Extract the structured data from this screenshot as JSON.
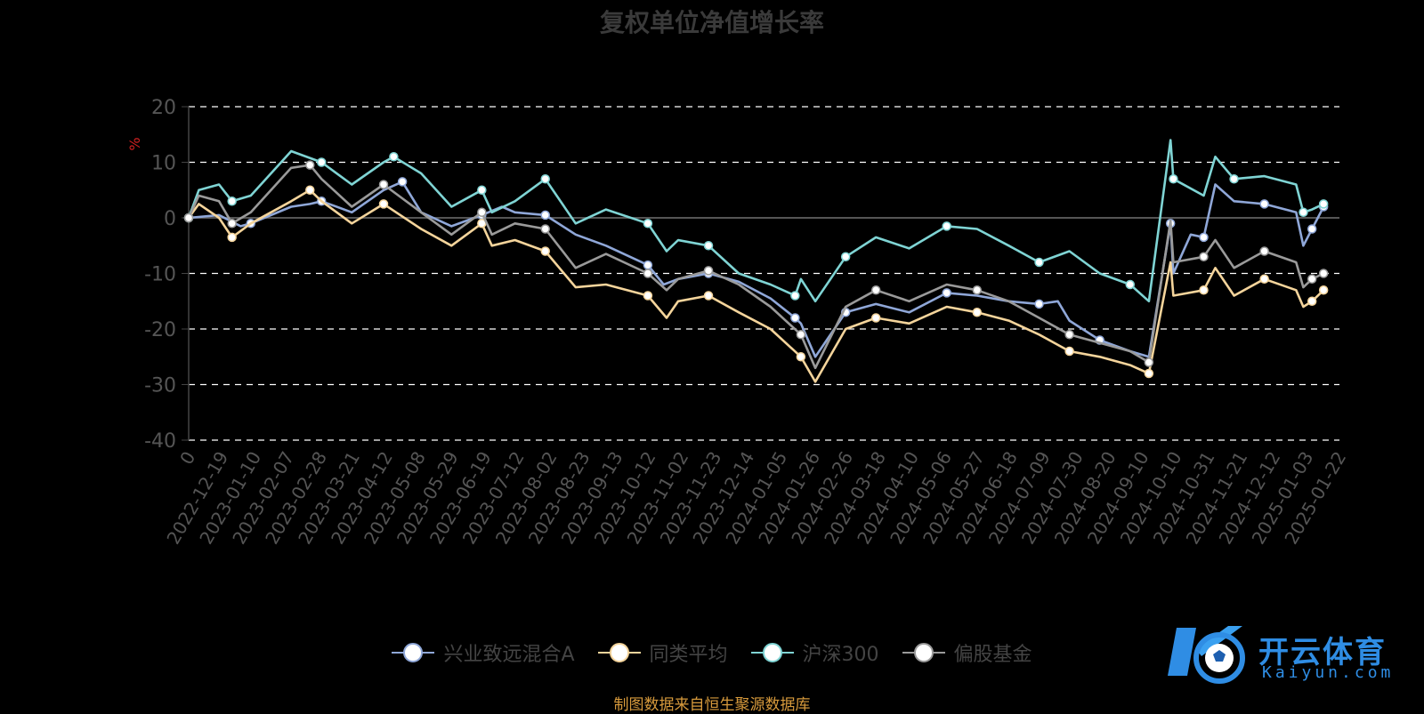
{
  "title": "复权单位净值增长率",
  "source_note": "制图数据来自恒生聚源数据库",
  "logo": {
    "brand": "开云体育",
    "domain": "Kaiyun.com"
  },
  "colors": {
    "axis": "#444444",
    "grid": "#ffffff",
    "zero": "#555555",
    "tick": "#555555",
    "unit": "#d02020"
  },
  "chart_data": {
    "type": "line",
    "ylabel": "%",
    "ylim": [
      -40,
      20
    ],
    "yticks": [
      20,
      10,
      0,
      -10,
      -20,
      -30,
      -40
    ],
    "xlim": [
      "2022-11-28",
      "2025-02-02"
    ],
    "x_tick_labels": [
      "0",
      "2022-12-19",
      "2023-01-10",
      "2023-02-07",
      "2023-02-28",
      "2023-03-21",
      "2023-04-12",
      "2023-05-08",
      "2023-05-29",
      "2023-06-19",
      "2023-07-12",
      "2023-08-02",
      "2023-08-23",
      "2023-09-13",
      "2023-10-12",
      "2023-11-02",
      "2023-11-23",
      "2023-12-14",
      "2024-01-05",
      "2024-01-26",
      "2024-02-26",
      "2024-03-18",
      "2024-04-10",
      "2024-05-06",
      "2024-05-27",
      "2024-06-18",
      "2024-07-09",
      "2024-07-30",
      "2024-08-20",
      "2024-09-10",
      "2024-10-10",
      "2024-10-31",
      "2024-11-21",
      "2024-12-12",
      "2025-01-03",
      "2025-01-22"
    ],
    "grid": "dashed horizontal",
    "legend_position": "bottom",
    "series": [
      {
        "name": "兴业致远混合A",
        "color": "#8fa7d8",
        "points": [
          [
            "2022-11-28",
            0
          ],
          [
            "2022-12-19",
            0.5
          ],
          [
            "2023-01-03",
            -1.5
          ],
          [
            "2023-01-10",
            -1
          ],
          [
            "2023-02-07",
            2
          ],
          [
            "2023-02-20",
            2.5
          ],
          [
            "2023-02-28",
            3
          ],
          [
            "2023-03-21",
            1
          ],
          [
            "2023-04-12",
            5
          ],
          [
            "2023-04-25",
            6.5
          ],
          [
            "2023-05-08",
            1
          ],
          [
            "2023-05-29",
            -1.5
          ],
          [
            "2023-06-19",
            0.5
          ],
          [
            "2023-07-03",
            2
          ],
          [
            "2023-07-12",
            1
          ],
          [
            "2023-08-02",
            0.5
          ],
          [
            "2023-08-23",
            -3
          ],
          [
            "2023-09-13",
            -5
          ],
          [
            "2023-10-12",
            -8.5
          ],
          [
            "2023-10-23",
            -12
          ],
          [
            "2023-11-02",
            -11
          ],
          [
            "2023-11-23",
            -10
          ],
          [
            "2023-12-14",
            -11.5
          ],
          [
            "2024-01-05",
            -14.5
          ],
          [
            "2024-01-22",
            -18
          ],
          [
            "2024-01-26",
            -19
          ],
          [
            "2024-02-05",
            -25
          ],
          [
            "2024-02-26",
            -17
          ],
          [
            "2024-03-18",
            -15.5
          ],
          [
            "2024-04-10",
            -17
          ],
          [
            "2024-05-06",
            -13.5
          ],
          [
            "2024-05-27",
            -14
          ],
          [
            "2024-06-18",
            -15
          ],
          [
            "2024-07-09",
            -15.5
          ],
          [
            "2024-07-22",
            -15
          ],
          [
            "2024-07-30",
            -18.5
          ],
          [
            "2024-08-20",
            -22
          ],
          [
            "2024-09-10",
            -24
          ],
          [
            "2024-09-23",
            -25
          ],
          [
            "2024-10-08",
            -1
          ],
          [
            "2024-10-10",
            -10
          ],
          [
            "2024-10-22",
            -3
          ],
          [
            "2024-10-31",
            -3.5
          ],
          [
            "2024-11-08",
            6
          ],
          [
            "2024-11-21",
            3
          ],
          [
            "2024-12-12",
            2.5
          ],
          [
            "2025-01-03",
            1
          ],
          [
            "2025-01-08",
            -5
          ],
          [
            "2025-01-14",
            -2
          ],
          [
            "2025-01-22",
            2
          ]
        ]
      },
      {
        "name": "同类平均",
        "color": "#f4d49b",
        "points": [
          [
            "2022-11-28",
            0
          ],
          [
            "2022-12-05",
            2.5
          ],
          [
            "2022-12-19",
            0
          ],
          [
            "2022-12-28",
            -3.5
          ],
          [
            "2023-01-10",
            -1
          ],
          [
            "2023-02-07",
            3
          ],
          [
            "2023-02-20",
            5
          ],
          [
            "2023-02-28",
            3
          ],
          [
            "2023-03-21",
            -1
          ],
          [
            "2023-04-12",
            2.5
          ],
          [
            "2023-05-08",
            -2
          ],
          [
            "2023-05-29",
            -5
          ],
          [
            "2023-06-19",
            -1
          ],
          [
            "2023-06-26",
            -5
          ],
          [
            "2023-07-12",
            -4
          ],
          [
            "2023-08-02",
            -6
          ],
          [
            "2023-08-23",
            -12.5
          ],
          [
            "2023-09-13",
            -12
          ],
          [
            "2023-10-12",
            -14
          ],
          [
            "2023-10-25",
            -18
          ],
          [
            "2023-11-02",
            -15
          ],
          [
            "2023-11-23",
            -14
          ],
          [
            "2023-12-14",
            -17
          ],
          [
            "2024-01-05",
            -20
          ],
          [
            "2024-01-26",
            -25
          ],
          [
            "2024-02-05",
            -29.5
          ],
          [
            "2024-02-26",
            -20
          ],
          [
            "2024-03-18",
            -18
          ],
          [
            "2024-04-10",
            -19
          ],
          [
            "2024-05-06",
            -16
          ],
          [
            "2024-05-27",
            -17
          ],
          [
            "2024-06-18",
            -18.5
          ],
          [
            "2024-07-09",
            -21
          ],
          [
            "2024-07-30",
            -24
          ],
          [
            "2024-08-20",
            -25
          ],
          [
            "2024-09-10",
            -26.5
          ],
          [
            "2024-09-23",
            -28
          ],
          [
            "2024-10-08",
            -8
          ],
          [
            "2024-10-10",
            -14
          ],
          [
            "2024-10-31",
            -13
          ],
          [
            "2024-11-08",
            -9
          ],
          [
            "2024-11-21",
            -14
          ],
          [
            "2024-12-12",
            -11
          ],
          [
            "2025-01-03",
            -13
          ],
          [
            "2025-01-08",
            -16
          ],
          [
            "2025-01-14",
            -15
          ],
          [
            "2025-01-22",
            -13
          ]
        ]
      },
      {
        "name": "沪深300",
        "color": "#7fd4d4",
        "points": [
          [
            "2022-11-28",
            0
          ],
          [
            "2022-12-05",
            5
          ],
          [
            "2022-12-19",
            6
          ],
          [
            "2022-12-28",
            3
          ],
          [
            "2023-01-10",
            4
          ],
          [
            "2023-02-07",
            12
          ],
          [
            "2023-02-28",
            10
          ],
          [
            "2023-03-21",
            6
          ],
          [
            "2023-04-12",
            10
          ],
          [
            "2023-04-19",
            11
          ],
          [
            "2023-05-08",
            8
          ],
          [
            "2023-05-29",
            2
          ],
          [
            "2023-06-19",
            5
          ],
          [
            "2023-06-26",
            1
          ],
          [
            "2023-07-12",
            3
          ],
          [
            "2023-08-02",
            7
          ],
          [
            "2023-08-23",
            -1
          ],
          [
            "2023-09-13",
            1.5
          ],
          [
            "2023-10-12",
            -1
          ],
          [
            "2023-10-25",
            -6
          ],
          [
            "2023-11-02",
            -4
          ],
          [
            "2023-11-23",
            -5
          ],
          [
            "2023-12-14",
            -10
          ],
          [
            "2024-01-05",
            -12
          ],
          [
            "2024-01-22",
            -14
          ],
          [
            "2024-01-26",
            -11
          ],
          [
            "2024-02-05",
            -15
          ],
          [
            "2024-02-26",
            -7
          ],
          [
            "2024-03-18",
            -3.5
          ],
          [
            "2024-04-10",
            -5.5
          ],
          [
            "2024-05-06",
            -1.5
          ],
          [
            "2024-05-27",
            -2
          ],
          [
            "2024-06-18",
            -5
          ],
          [
            "2024-07-09",
            -8
          ],
          [
            "2024-07-30",
            -6
          ],
          [
            "2024-08-20",
            -10
          ],
          [
            "2024-09-10",
            -12
          ],
          [
            "2024-09-23",
            -15
          ],
          [
            "2024-10-08",
            14
          ],
          [
            "2024-10-10",
            7
          ],
          [
            "2024-10-31",
            4
          ],
          [
            "2024-11-08",
            11
          ],
          [
            "2024-11-21",
            7
          ],
          [
            "2024-12-12",
            7.5
          ],
          [
            "2025-01-03",
            6
          ],
          [
            "2025-01-08",
            1
          ],
          [
            "2025-01-14",
            1.5
          ],
          [
            "2025-01-22",
            2.5
          ]
        ]
      },
      {
        "name": "偏股基金",
        "color": "#9a9a9a",
        "points": [
          [
            "2022-11-28",
            0
          ],
          [
            "2022-12-05",
            4
          ],
          [
            "2022-12-19",
            3
          ],
          [
            "2022-12-28",
            -1
          ],
          [
            "2023-01-10",
            1
          ],
          [
            "2023-02-07",
            9
          ],
          [
            "2023-02-20",
            9.5
          ],
          [
            "2023-02-28",
            7
          ],
          [
            "2023-03-21",
            2
          ],
          [
            "2023-04-12",
            6
          ],
          [
            "2023-05-08",
            1
          ],
          [
            "2023-05-29",
            -3
          ],
          [
            "2023-06-19",
            1
          ],
          [
            "2023-06-26",
            -3
          ],
          [
            "2023-07-12",
            -1
          ],
          [
            "2023-08-02",
            -2
          ],
          [
            "2023-08-23",
            -9
          ],
          [
            "2023-09-13",
            -6.5
          ],
          [
            "2023-10-12",
            -10
          ],
          [
            "2023-10-25",
            -13
          ],
          [
            "2023-11-02",
            -11
          ],
          [
            "2023-11-23",
            -9.5
          ],
          [
            "2023-12-14",
            -12
          ],
          [
            "2024-01-05",
            -16
          ],
          [
            "2024-01-26",
            -21
          ],
          [
            "2024-02-05",
            -27
          ],
          [
            "2024-02-26",
            -16
          ],
          [
            "2024-03-18",
            -13
          ],
          [
            "2024-04-10",
            -15
          ],
          [
            "2024-05-06",
            -12
          ],
          [
            "2024-05-27",
            -13
          ],
          [
            "2024-06-18",
            -15
          ],
          [
            "2024-07-09",
            -18
          ],
          [
            "2024-07-30",
            -21
          ],
          [
            "2024-08-20",
            -22.5
          ],
          [
            "2024-09-10",
            -24
          ],
          [
            "2024-09-23",
            -26
          ],
          [
            "2024-10-08",
            -0.5
          ],
          [
            "2024-10-10",
            -8
          ],
          [
            "2024-10-31",
            -7
          ],
          [
            "2024-11-08",
            -4
          ],
          [
            "2024-11-21",
            -9
          ],
          [
            "2024-12-12",
            -6
          ],
          [
            "2025-01-03",
            -8
          ],
          [
            "2025-01-08",
            -12.5
          ],
          [
            "2025-01-14",
            -11
          ],
          [
            "2025-01-22",
            -10
          ]
        ]
      }
    ]
  }
}
